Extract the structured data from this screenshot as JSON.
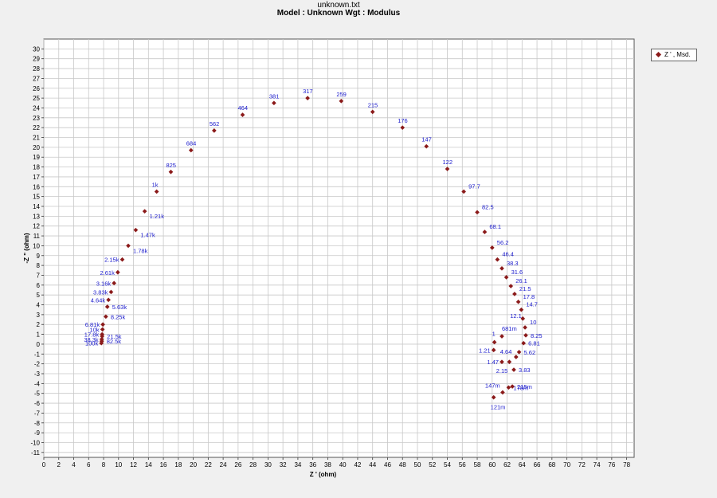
{
  "title": "unknown.txt",
  "subtitle": "Model : Unknown     Wgt : Modulus",
  "legend": {
    "label": "Z ' , Msd.",
    "color": "#8b1a1a"
  },
  "chart_data": {
    "type": "scatter",
    "xlabel": "Z ' (ohm)",
    "ylabel": "-Z \" (ohm)",
    "xlim": [
      0,
      79
    ],
    "ylim": [
      -11.5,
      31
    ],
    "xticks": [
      0,
      2,
      4,
      6,
      8,
      10,
      12,
      14,
      16,
      18,
      20,
      22,
      24,
      26,
      28,
      30,
      32,
      34,
      36,
      38,
      40,
      42,
      44,
      46,
      48,
      50,
      52,
      54,
      56,
      58,
      60,
      62,
      64,
      66,
      68,
      70,
      72,
      74,
      76,
      78
    ],
    "yticks": [
      -11,
      -10,
      -9,
      -8,
      -7,
      -6,
      -5,
      -4,
      -3,
      -2,
      -1,
      0,
      1,
      2,
      3,
      4,
      5,
      6,
      7,
      8,
      9,
      10,
      11,
      12,
      13,
      14,
      15,
      16,
      17,
      18,
      19,
      20,
      21,
      22,
      23,
      24,
      25,
      26,
      27,
      28,
      29,
      30
    ],
    "grid": true,
    "legend_position": "top-right",
    "marker_color": "#8b1a1a",
    "label_color": "#1a1acc",
    "series": [
      {
        "name": "Z ' , Msd.",
        "points": [
          {
            "x": 7.7,
            "y": 0.1,
            "label": "100k"
          },
          {
            "x": 7.75,
            "y": 0.5,
            "label": "38.3k"
          },
          {
            "x": 7.8,
            "y": 1.0,
            "label": "17.8k"
          },
          {
            "x": 7.85,
            "y": 1.5,
            "label": "10k"
          },
          {
            "x": 7.9,
            "y": 2.0,
            "label": "6.81k"
          },
          {
            "x": 7.75,
            "y": 0.3,
            "label": "82.5k"
          },
          {
            "x": 7.8,
            "y": 0.8,
            "label": "21.5k"
          },
          {
            "x": 8.3,
            "y": 2.8,
            "label": "8.25k"
          },
          {
            "x": 8.5,
            "y": 3.8,
            "label": "5.63k"
          },
          {
            "x": 8.65,
            "y": 4.5,
            "label": "4.64k"
          },
          {
            "x": 9.0,
            "y": 5.3,
            "label": "3.83k"
          },
          {
            "x": 9.4,
            "y": 6.2,
            "label": "3.16k"
          },
          {
            "x": 9.9,
            "y": 7.3,
            "label": "2.61k"
          },
          {
            "x": 10.5,
            "y": 8.6,
            "label": "2.15k"
          },
          {
            "x": 11.3,
            "y": 10.0,
            "label": "1.78k"
          },
          {
            "x": 12.3,
            "y": 11.6,
            "label": "1.47k"
          },
          {
            "x": 13.5,
            "y": 13.5,
            "label": "1.21k"
          },
          {
            "x": 15.1,
            "y": 15.5,
            "label": "1k"
          },
          {
            "x": 17.0,
            "y": 17.5,
            "label": "825"
          },
          {
            "x": 19.7,
            "y": 19.7,
            "label": "684"
          },
          {
            "x": 22.8,
            "y": 21.7,
            "label": "562"
          },
          {
            "x": 26.6,
            "y": 23.3,
            "label": "464"
          },
          {
            "x": 30.8,
            "y": 24.5,
            "label": "381"
          },
          {
            "x": 35.3,
            "y": 25.0,
            "label": "317"
          },
          {
            "x": 39.8,
            "y": 24.7,
            "label": "259"
          },
          {
            "x": 44.0,
            "y": 23.6,
            "label": "215"
          },
          {
            "x": 48.0,
            "y": 22.0,
            "label": "176"
          },
          {
            "x": 51.2,
            "y": 20.1,
            "label": "147"
          },
          {
            "x": 54.0,
            "y": 17.8,
            "label": "122"
          },
          {
            "x": 56.2,
            "y": 15.5,
            "label": "97.7"
          },
          {
            "x": 58.0,
            "y": 13.4,
            "label": "82.5"
          },
          {
            "x": 59.0,
            "y": 11.4,
            "label": "68.1"
          },
          {
            "x": 60.0,
            "y": 9.8,
            "label": "56.2"
          },
          {
            "x": 60.7,
            "y": 8.6,
            "label": "46.4"
          },
          {
            "x": 61.3,
            "y": 7.7,
            "label": "38.3"
          },
          {
            "x": 61.9,
            "y": 6.8,
            "label": "31.6"
          },
          {
            "x": 62.5,
            "y": 5.9,
            "label": "26.1"
          },
          {
            "x": 63.0,
            "y": 5.1,
            "label": "21.5"
          },
          {
            "x": 63.5,
            "y": 4.3,
            "label": "17.8"
          },
          {
            "x": 63.9,
            "y": 3.5,
            "label": "14.7"
          },
          {
            "x": 64.1,
            "y": 2.6,
            "label": "12.1"
          },
          {
            "x": 64.4,
            "y": 1.7,
            "label": "10"
          },
          {
            "x": 64.5,
            "y": 0.9,
            "label": "8.25"
          },
          {
            "x": 64.2,
            "y": 0.1,
            "label": "6.81"
          },
          {
            "x": 63.6,
            "y": -0.8,
            "label": "5.62"
          },
          {
            "x": 63.2,
            "y": -1.3,
            "label": "4.64"
          },
          {
            "x": 62.9,
            "y": -2.6,
            "label": "3.83"
          },
          {
            "x": 62.3,
            "y": -1.8,
            "label": "2.15"
          },
          {
            "x": 61.3,
            "y": -1.8,
            "label": "1.47"
          },
          {
            "x": 60.2,
            "y": -0.6,
            "label": "1.21"
          },
          {
            "x": 60.3,
            "y": 0.2,
            "label": "1"
          },
          {
            "x": 61.3,
            "y": 0.8,
            "label": "681m"
          },
          {
            "x": 62.7,
            "y": -4.3,
            "label": "215m"
          },
          {
            "x": 62.2,
            "y": -4.4,
            "label": "178m"
          },
          {
            "x": 61.4,
            "y": -4.9,
            "label": "147m"
          },
          {
            "x": 60.2,
            "y": -5.4,
            "label": "121m"
          }
        ]
      }
    ]
  }
}
